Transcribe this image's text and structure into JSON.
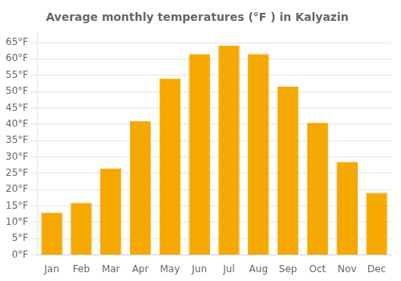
{
  "chart_data": {
    "type": "bar",
    "title": "Average monthly temperatures (°F ) in Kalyazin",
    "categories": [
      "Jan",
      "Feb",
      "Mar",
      "Apr",
      "May",
      "Jun",
      "Jul",
      "Aug",
      "Sep",
      "Oct",
      "Nov",
      "Dec"
    ],
    "values": [
      13,
      16,
      26.5,
      41,
      54,
      61.5,
      64,
      61.5,
      51.5,
      40.5,
      28.5,
      19
    ],
    "color": "#F5A800",
    "ylim": [
      0,
      68
    ],
    "yticks": [
      {
        "value": 0,
        "label": "0°F"
      },
      {
        "value": 5,
        "label": "5°F"
      },
      {
        "value": 10,
        "label": "10°F"
      },
      {
        "value": 15,
        "label": "15°F"
      },
      {
        "value": 20,
        "label": "20°F"
      },
      {
        "value": 25,
        "label": "25°F"
      },
      {
        "value": 30,
        "label": "30°F"
      },
      {
        "value": 35,
        "label": "35°F"
      },
      {
        "value": 40,
        "label": "40°F"
      },
      {
        "value": 45,
        "label": "45°F"
      },
      {
        "value": 50,
        "label": "50°F"
      },
      {
        "value": 55,
        "label": "55°F"
      },
      {
        "value": 60,
        "label": "60°F"
      },
      {
        "value": 65,
        "label": "65°F"
      }
    ],
    "grid": true
  }
}
